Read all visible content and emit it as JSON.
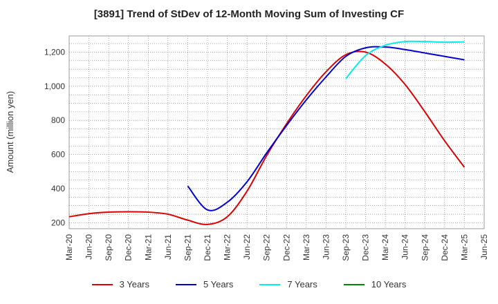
{
  "chart_data": {
    "type": "line",
    "title": "[3891]  Trend of StDev of 12-Month Moving Sum of Investing CF",
    "ylabel": "Amount (million yen)",
    "xlabel": "",
    "x_ticks": [
      "Mar-20",
      "Jun-20",
      "Sep-20",
      "Dec-20",
      "Mar-21",
      "Jun-21",
      "Sep-21",
      "Dec-21",
      "Mar-22",
      "Jun-22",
      "Sep-22",
      "Dec-22",
      "Mar-23",
      "Jun-23",
      "Sep-23",
      "Dec-23",
      "Mar-24",
      "Jun-24",
      "Sep-24",
      "Dec-24",
      "Mar-25",
      "Jun-25"
    ],
    "y_ticks": [
      200,
      400,
      600,
      800,
      1000,
      1200
    ],
    "y_tick_labels": [
      "200",
      "400",
      "600",
      "800",
      "1,000",
      "1,200"
    ],
    "ylim": [
      165,
      1295
    ],
    "grid": true,
    "legend_position": "bottom",
    "series": [
      {
        "name": "3 Years",
        "color": "#dd0000",
        "x": [
          "Mar-20",
          "Jun-20",
          "Sep-20",
          "Dec-20",
          "Mar-21",
          "Jun-21",
          "Sep-21",
          "Dec-21",
          "Mar-22",
          "Jun-22",
          "Sep-22",
          "Dec-22",
          "Mar-23",
          "Jun-23",
          "Sep-23",
          "Dec-23",
          "Mar-24",
          "Jun-24",
          "Sep-24",
          "Dec-24",
          "Mar-25"
        ],
        "values": [
          235,
          253,
          262,
          264,
          262,
          250,
          215,
          190,
          235,
          385,
          595,
          780,
          945,
          1085,
          1185,
          1200,
          1130,
          1010,
          850,
          680,
          525
        ]
      },
      {
        "name": "5 Years",
        "color": "#0000cc",
        "x": [
          "Sep-21",
          "Dec-21",
          "Mar-22",
          "Jun-22",
          "Sep-22",
          "Dec-22",
          "Mar-23",
          "Jun-23",
          "Sep-23",
          "Dec-23",
          "Mar-24",
          "Jun-24",
          "Sep-24",
          "Dec-24",
          "Mar-25"
        ],
        "values": [
          415,
          275,
          320,
          440,
          610,
          770,
          920,
          1055,
          1175,
          1225,
          1230,
          1215,
          1195,
          1175,
          1155
        ]
      },
      {
        "name": "7 Years",
        "color": "#00eeee",
        "x": [
          "Sep-23",
          "Dec-23",
          "Mar-24",
          "Jun-24",
          "Sep-24",
          "Dec-24",
          "Mar-25"
        ],
        "values": [
          1045,
          1180,
          1240,
          1262,
          1262,
          1258,
          1260
        ]
      },
      {
        "name": "10 Years",
        "color": "#008800",
        "x": [],
        "values": []
      }
    ]
  }
}
